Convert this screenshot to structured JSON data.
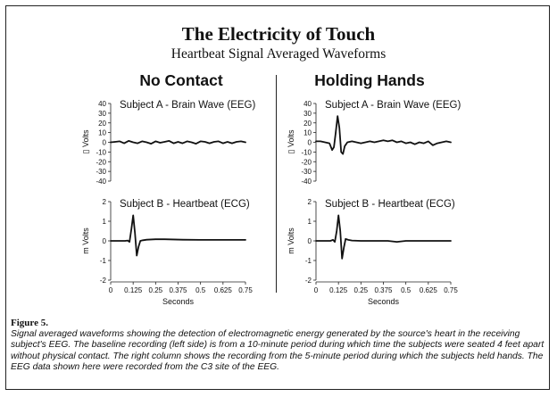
{
  "title": "The Electricity of Touch",
  "subtitle": "Heartbeat Signal Averaged Waveforms",
  "columns": [
    "No Contact",
    "Holding Hands"
  ],
  "caption": {
    "label": "Figure 5.",
    "text": "Signal averaged waveforms showing the detection of electromagnetic energy generated by the source's heart in the receiving subject's EEG. The baseline recording (left side) is from a 10-minute period during which time the subjects were seated 4 feet apart without physical contact. The right column shows the recording from the 5-minute period during which the subjects held hands. The EEG data shown here were recorded from the C3 site of the EEG."
  },
  "chart_data": [
    {
      "type": "line",
      "panel": "No Contact",
      "title": "Subject A - Brain Wave (EEG)",
      "ylabel": "▯ Volts",
      "ylim": [
        -40,
        40
      ],
      "yticks": [
        40,
        30,
        20,
        10,
        0,
        -10,
        -20,
        -30,
        -40
      ],
      "series": [
        {
          "x": [
            0,
            0.025,
            0.05,
            0.075,
            0.1,
            0.125,
            0.15,
            0.175,
            0.2,
            0.225,
            0.25,
            0.275,
            0.3,
            0.325,
            0.35,
            0.375,
            0.4,
            0.425,
            0.45,
            0.475,
            0.5,
            0.525,
            0.55,
            0.575,
            0.6,
            0.625,
            0.65,
            0.675,
            0.7,
            0.725,
            0.75
          ],
          "y": [
            0,
            0.5,
            1,
            -1,
            1.5,
            0,
            -1,
            1,
            0,
            -1.5,
            1,
            -0.5,
            0.5,
            1.5,
            -1,
            0.5,
            -1,
            1,
            0,
            -1.5,
            1,
            0.5,
            -1,
            0.5,
            1,
            -1,
            0.5,
            -1,
            0.5,
            1,
            0
          ]
        }
      ]
    },
    {
      "type": "line",
      "panel": "No Contact",
      "title": "Subject B - Heartbeat (ECG)",
      "ylabel": "m Volts",
      "ylim": [
        -2,
        2
      ],
      "yticks": [
        2,
        1,
        0,
        -1,
        -2
      ],
      "xlabel": "Seconds",
      "xticks": [
        "0",
        "0.125",
        "0.25",
        "0.375",
        "0.5",
        "0.625",
        "0.75"
      ],
      "series": [
        {
          "x": [
            0,
            0.05,
            0.08,
            0.095,
            0.105,
            0.115,
            0.125,
            0.135,
            0.145,
            0.155,
            0.165,
            0.18,
            0.2,
            0.25,
            0.3,
            0.4,
            0.5,
            0.6,
            0.75
          ],
          "y": [
            0,
            0,
            0,
            0.02,
            -0.05,
            0.6,
            1.3,
            0.4,
            -0.75,
            -0.3,
            0,
            0.03,
            0.06,
            0.08,
            0.08,
            0.06,
            0.05,
            0.05,
            0.05
          ]
        }
      ]
    },
    {
      "type": "line",
      "panel": "Holding Hands",
      "title": "Subject A - Brain Wave (EEG)",
      "ylabel": "▯ Volts",
      "ylim": [
        -40,
        40
      ],
      "yticks": [
        40,
        30,
        20,
        10,
        0,
        -10,
        -20,
        -30,
        -40
      ],
      "series": [
        {
          "x": [
            0,
            0.025,
            0.05,
            0.075,
            0.09,
            0.1,
            0.11,
            0.12,
            0.13,
            0.14,
            0.15,
            0.16,
            0.175,
            0.2,
            0.225,
            0.25,
            0.275,
            0.3,
            0.325,
            0.35,
            0.375,
            0.4,
            0.425,
            0.45,
            0.475,
            0.5,
            0.525,
            0.55,
            0.575,
            0.6,
            0.625,
            0.65,
            0.675,
            0.7,
            0.725,
            0.75
          ],
          "y": [
            1,
            1,
            0,
            -1,
            -8,
            -5,
            10,
            27,
            15,
            -10,
            -12,
            -4,
            0,
            1,
            0,
            -1,
            0,
            1,
            0,
            1,
            2,
            1,
            2,
            0,
            1,
            -1,
            0,
            -2,
            0,
            -1,
            1,
            -3,
            -1,
            0,
            1,
            0
          ]
        }
      ]
    },
    {
      "type": "line",
      "panel": "Holding Hands",
      "title": "Subject B - Heartbeat (ECG)",
      "ylabel": "m Volts",
      "ylim": [
        -2,
        2
      ],
      "yticks": [
        2,
        1,
        0,
        -1,
        -2
      ],
      "xlabel": "Seconds",
      "xticks": [
        "0",
        "0.125",
        "0.25",
        "0.375",
        "0.5",
        "0.625",
        "0.75"
      ],
      "series": [
        {
          "x": [
            0,
            0.05,
            0.08,
            0.095,
            0.105,
            0.115,
            0.125,
            0.135,
            0.145,
            0.155,
            0.165,
            0.18,
            0.2,
            0.25,
            0.3,
            0.4,
            0.45,
            0.5,
            0.6,
            0.75
          ],
          "y": [
            0,
            0,
            0,
            0.05,
            -0.05,
            0.5,
            1.3,
            0.5,
            -0.9,
            -0.35,
            0.1,
            0.05,
            0.02,
            0,
            0,
            0,
            -0.05,
            0,
            0,
            0
          ]
        }
      ]
    }
  ]
}
